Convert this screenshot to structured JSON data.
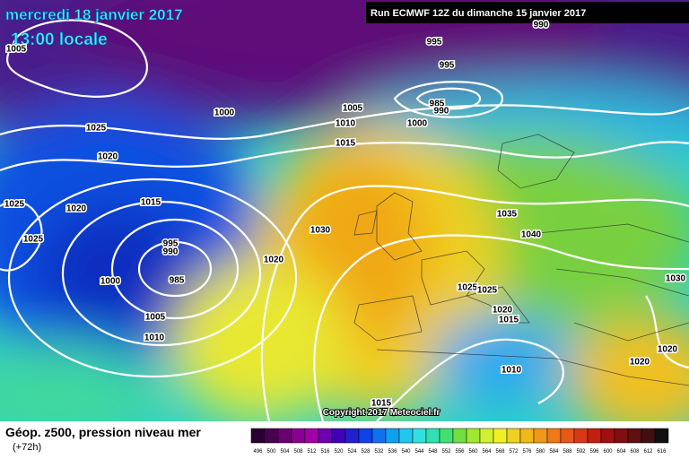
{
  "header": {
    "date": "mercredi 18 janvier 2017",
    "time": "13:00 locale",
    "run": "Run ECMWF 12Z du dimanche 15 janvier 2017"
  },
  "isobar_labels": [
    "1005",
    "995",
    "995",
    "990",
    "1000",
    "1005",
    "1010",
    "985",
    "990",
    "1000",
    "1015",
    "1025",
    "1020",
    "1025",
    "1020",
    "1015",
    "1025",
    "995",
    "990",
    "985",
    "1000",
    "1030",
    "1020",
    "1035",
    "1040",
    "1025",
    "1025",
    "1020",
    "1015",
    "1005",
    "1010",
    "1030",
    "1020",
    "1020",
    "1010",
    "1015"
  ],
  "copyright": "Copyright 2017 Meteociel.fr",
  "legend": {
    "title": "Géop. z500, pression niveau mer",
    "lead": "(+72h)",
    "scale": [
      "496",
      "500",
      "504",
      "508",
      "512",
      "516",
      "520",
      "524",
      "528",
      "532",
      "536",
      "540",
      "544",
      "548",
      "552",
      "556",
      "560",
      "564",
      "568",
      "572",
      "576",
      "580",
      "584",
      "588",
      "592",
      "596",
      "600",
      "604",
      "608",
      "612",
      "616"
    ]
  }
}
